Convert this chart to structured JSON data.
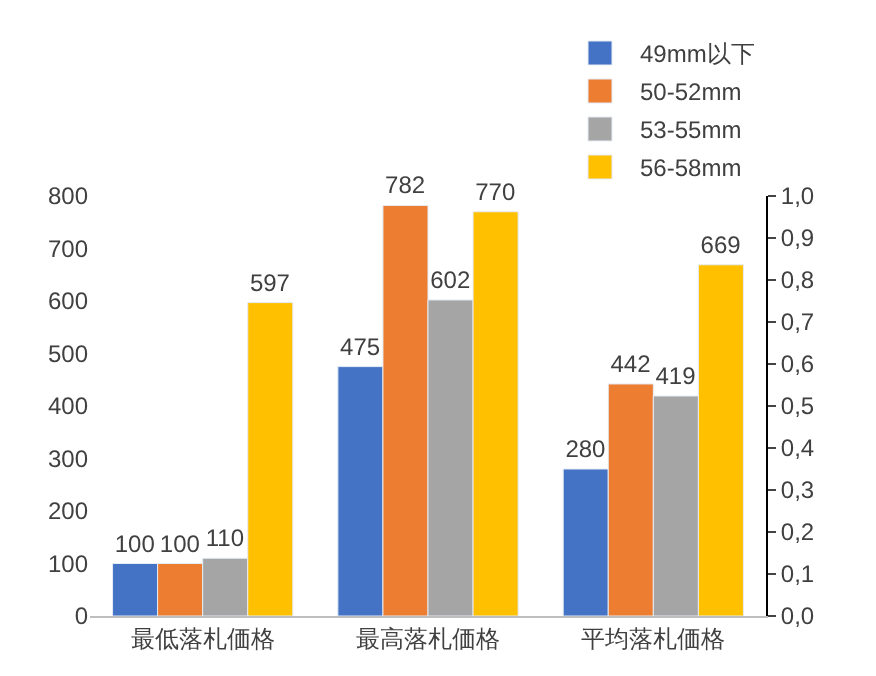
{
  "chart_data": {
    "type": "bar",
    "categories": [
      "最低落札価格",
      "最高落札価格",
      "平均落札価格"
    ],
    "series": [
      {
        "name": "49mm以下",
        "color": "#4472c4",
        "values": [
          100,
          475,
          280
        ]
      },
      {
        "name": "50-52mm",
        "color": "#ed7d31",
        "values": [
          100,
          782,
          442
        ]
      },
      {
        "name": "53-55mm",
        "color": "#a5a5a5",
        "values": [
          110,
          602,
          419
        ]
      },
      {
        "name": "56-58mm",
        "color": "#ffc000",
        "values": [
          597,
          770,
          669
        ]
      }
    ],
    "ylim": [
      0,
      800
    ],
    "yticks": [
      0,
      100,
      200,
      300,
      400,
      500,
      600,
      700,
      800
    ],
    "y2lim": [
      0,
      1
    ],
    "y2ticks": [
      {
        "value": 0,
        "label": "0,0"
      },
      {
        "value": 0.1,
        "label": "0,1"
      },
      {
        "value": 0.2,
        "label": "0,2"
      },
      {
        "value": 0.3,
        "label": "0,3"
      },
      {
        "value": 0.4,
        "label": "0,4"
      },
      {
        "value": 0.5,
        "label": "0,5"
      },
      {
        "value": 0.6,
        "label": "0,6"
      },
      {
        "value": 0.7,
        "label": "0,7"
      },
      {
        "value": 0.8,
        "label": "0,8"
      },
      {
        "value": 0.9,
        "label": "0,9"
      },
      {
        "value": 1,
        "label": "1,0"
      }
    ],
    "data_labels": true,
    "legend": "top right"
  }
}
